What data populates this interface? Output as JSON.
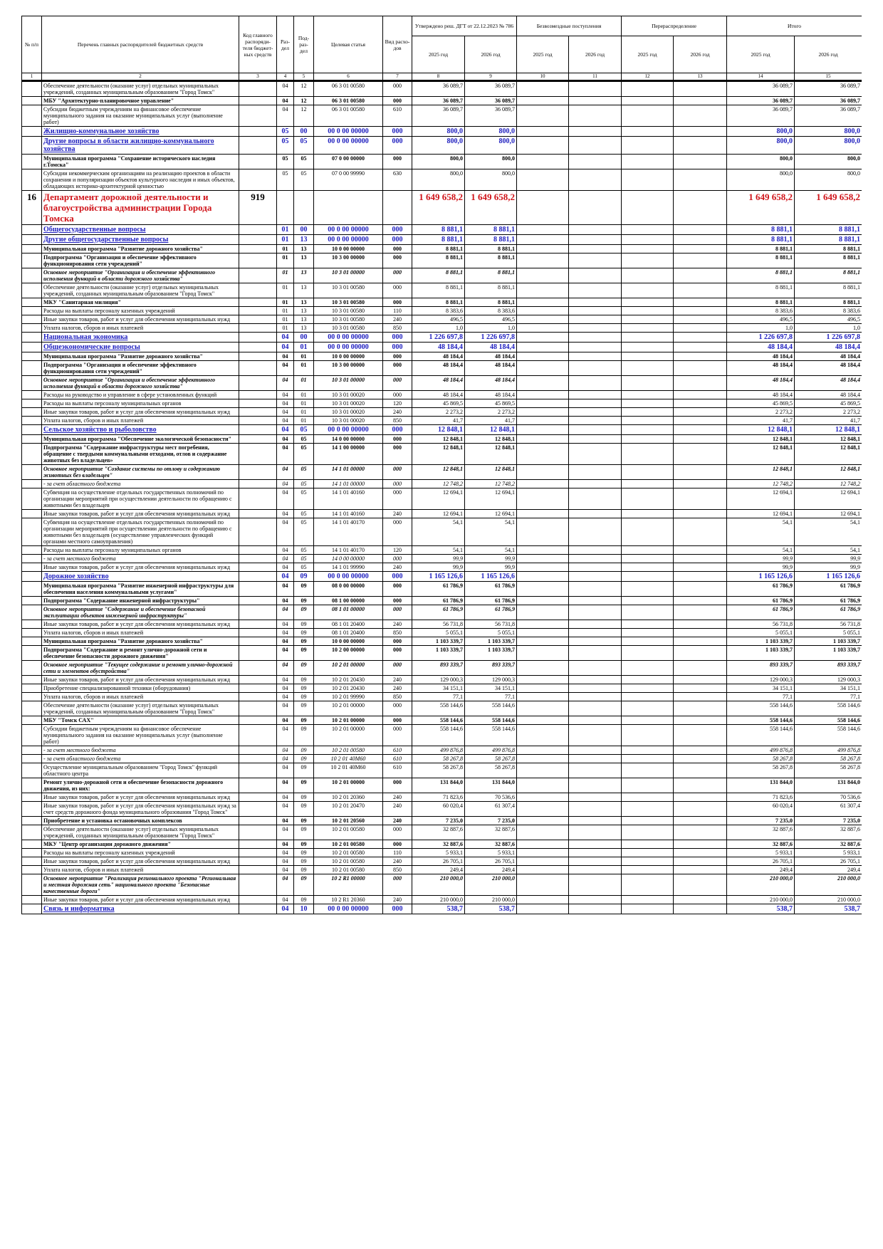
{
  "header": {
    "no": "№ п/п",
    "name": "Перечень главных распорядителей бюджетных средств",
    "code": "Код главного распоряди-теля бюджет-ных средств",
    "rz": "Раз-дел",
    "prz": "Под-раз-дел",
    "cs": "Целевая статья",
    "vr": "Вид расхо-дов",
    "approved": "Утверждено реш. ДГТ от 22.12.2023 № 786",
    "grants": "Безвозмездные поступления",
    "redistribution": "Перераспределение",
    "total": "Итого",
    "years": [
      "2025 год",
      "2026 год"
    ],
    "column_numbers": [
      1,
      2,
      3,
      4,
      5,
      6,
      7,
      8,
      9,
      10,
      11,
      12,
      13,
      14,
      15
    ]
  },
  "table": {
    "rows": [
      [
        null,
        "Обеспечение деятельности (оказание услуг) отдельных муниципальных учреждений, созданных муниципальным образованием \"Город Томск\"",
        null,
        "04",
        "12",
        "06 3 01 00580",
        "000",
        "36 089,7",
        "36 089,7",
        "36 089,7",
        "36 089,7"
      ],
      [
        null,
        "МБУ \"Архитектурно-планировочное управление\"",
        null,
        "04",
        "12",
        "06 3 01 00580",
        "000",
        "36 089,7",
        "36 089,7",
        "36 089,7",
        "36 089,7"
      ],
      [
        null,
        "Субсидии бюджетным учреждениям на финансовое обеспечение муниципального задания на оказание муниципальных услуг (выполнение работ)",
        null,
        "04",
        "12",
        "06 3 01 00580",
        "610",
        "36 089,7",
        "36 089,7",
        "36 089,7",
        "36 089,7"
      ],
      [
        null,
        "Жилищно-коммунальное хозяйство",
        null,
        "05",
        "00",
        "00 0 00 00000",
        "000",
        "800,0",
        "800,0",
        "800,0",
        "800,0"
      ],
      [
        null,
        "Другие вопросы в области жилищно-коммунального хозяйства",
        null,
        "05",
        "05",
        "00 0 00 00000",
        "000",
        "800,0",
        "800,0",
        "800,0",
        "800,0"
      ],
      [
        null,
        "Муниципальная программа \"Сохранение исторического наследия г.Томска\"",
        null,
        "05",
        "05",
        "07 0 00 00000",
        "000",
        "800,0",
        "800,0",
        "800,0",
        "800,0"
      ],
      [
        null,
        "Субсидии некоммерческим организациям на реализацию проектов в области сохранения и популяризации объектов культурного наследия и иных объектов, обладающих историко-архитектурной ценностью",
        null,
        "05",
        "05",
        "07 0 00 99990",
        "630",
        "800,0",
        "800,0",
        "800,0",
        "800,0"
      ],
      [
        "16",
        "Департамент дорожной деятельности и благоустройства администрации Города Томска",
        "919",
        null,
        null,
        null,
        null,
        "1 649 658,2",
        "1 649 658,2",
        "1 649 658,2",
        "1 649 658,2"
      ],
      [
        null,
        "Общегосударственные вопросы",
        null,
        "01",
        "00",
        "00 0 00 00000",
        "000",
        "8 881,1",
        "8 881,1",
        "8 881,1",
        "8 881,1"
      ],
      [
        null,
        "Другие общегосударственные вопросы",
        null,
        "01",
        "13",
        "00 0 00 00000",
        "000",
        "8 881,1",
        "8 881,1",
        "8 881,1",
        "8 881,1"
      ],
      [
        null,
        "Муниципальная программа \"Развитие дорожного хозяйства\"",
        null,
        "01",
        "13",
        "10 0 00 00000",
        "000",
        "8 881,1",
        "8 881,1",
        "8 881,1",
        "8 881,1"
      ],
      [
        null,
        "Подпрограмма \"Организация и обеспечение эффективного функционирования сети учреждений\"",
        null,
        "01",
        "13",
        "10 3 00 00000",
        "000",
        "8 881,1",
        "8 881,1",
        "8 881,1",
        "8 881,1"
      ],
      [
        null,
        "Основное мероприятие \"Организация и обеспечение эффективного исполнения функций в области дорожного хозяйства\"",
        null,
        "01",
        "13",
        "10 3 01 00000",
        "000",
        "8 881,1",
        "8 881,1",
        "8 881,1",
        "8 881,1"
      ],
      [
        null,
        "Обеспечение деятельности (оказание услуг) отдельных муниципальных учреждений, созданных муниципальным образованием \"Город Томск\"",
        null,
        "01",
        "13",
        "10 3 01 00580",
        "000",
        "8 881,1",
        "8 881,1",
        "8 881,1",
        "8 881,1"
      ],
      [
        null,
        "МКУ \"Санитарная милиция\"",
        null,
        "01",
        "13",
        "10 3 01 00580",
        "000",
        "8 881,1",
        "8 881,1",
        "8 881,1",
        "8 881,1"
      ],
      [
        null,
        "Расходы на выплаты персоналу казенных учреждений",
        null,
        "01",
        "13",
        "10 3 01 00580",
        "110",
        "8 383,6",
        "8 383,6",
        "8 383,6",
        "8 383,6"
      ],
      [
        null,
        "Иные закупки товаров, работ и услуг для обеспечения муниципальных нужд",
        null,
        "01",
        "13",
        "10 3 01 00580",
        "240",
        "496,5",
        "496,5",
        "496,5",
        "496,5"
      ],
      [
        null,
        "Уплата налогов, сборов и иных платежей",
        null,
        "01",
        "13",
        "10 3 01 00580",
        "850",
        "1,0",
        "1,0",
        "1,0",
        "1,0"
      ],
      [
        null,
        "Национальная экономика",
        null,
        "04",
        "00",
        "00 0 00 00000",
        "000",
        "1 226 697,8",
        "1 226 697,8",
        "1 226 697,8",
        "1 226 697,8"
      ],
      [
        null,
        "Общеэкономические вопросы",
        null,
        "04",
        "01",
        "00 0 00 00000",
        "000",
        "48 184,4",
        "48 184,4",
        "48 184,4",
        "48 184,4"
      ],
      [
        null,
        "Муниципальная программа \"Развитие дорожного хозяйства\"",
        null,
        "04",
        "01",
        "10 0 00 00000",
        "000",
        "48 184,4",
        "48 184,4",
        "48 184,4",
        "48 184,4"
      ],
      [
        null,
        "Подпрограмма \"Организация и обеспечение эффективного функционирования сети учреждений\"",
        null,
        "04",
        "01",
        "10 3 00 00000",
        "000",
        "48 184,4",
        "48 184,4",
        "48 184,4",
        "48 184,4"
      ],
      [
        null,
        "Основное мероприятие \"Организация и обеспечение эффективного исполнения функций в области дорожного хозяйства\"",
        null,
        "04",
        "01",
        "10 3 01 00000",
        "000",
        "48 184,4",
        "48 184,4",
        "48 184,4",
        "48 184,4"
      ],
      [
        null,
        "Расходы на руководство и управление в сфере установленных функций",
        null,
        "04",
        "01",
        "10 3 01 00020",
        "000",
        "48 184,4",
        "48 184,4",
        "48 184,4",
        "48 184,4"
      ],
      [
        null,
        "Расходы на выплаты персоналу муниципальных органов",
        null,
        "04",
        "01",
        "10 3 01 00020",
        "120",
        "45 869,5",
        "45 869,5",
        "45 869,5",
        "45 869,5"
      ],
      [
        null,
        "Иные закупки товаров, работ и услуг для обеспечения муниципальных нужд",
        null,
        "04",
        "01",
        "10 3 01 00020",
        "240",
        "2 273,2",
        "2 273,2",
        "2 273,2",
        "2 273,2"
      ],
      [
        null,
        "Уплата налогов, сборов и иных платежей",
        null,
        "04",
        "01",
        "10 3 01 00020",
        "850",
        "41,7",
        "41,7",
        "41,7",
        "41,7"
      ],
      [
        null,
        "Сельское хозяйство и рыболовство",
        null,
        "04",
        "05",
        "00 0 00 00000",
        "000",
        "12 848,1",
        "12 848,1",
        "12 848,1",
        "12 848,1"
      ],
      [
        null,
        "Муниципальная программа \"Обеспечение экологической безопасности\"",
        null,
        "04",
        "05",
        "14 0 00 00000",
        "000",
        "12 848,1",
        "12 848,1",
        "12 848,1",
        "12 848,1"
      ],
      [
        null,
        "Подпрограмма \"Содержание инфраструктуры мест погребения, обращение с твердыми коммунальными отходами, отлов и содержание животных без владельцев»",
        null,
        "04",
        "05",
        "14 1 00 00000",
        "000",
        "12 848,1",
        "12 848,1",
        "12 848,1",
        "12 848,1"
      ],
      [
        null,
        "Основное мероприятие \"Создание системы по отлову и содержанию животных без владельцев\"",
        null,
        "04",
        "05",
        "14 1 01 00000",
        "000",
        "12 848,1",
        "12 848,1",
        "12 848,1",
        "12 848,1"
      ],
      [
        null,
        "- за счет областного бюджета",
        null,
        "04",
        "05",
        "14 1 01 00000",
        "000",
        "12 748,2",
        "12 748,2",
        "12 748,2",
        "12 748,2"
      ],
      [
        null,
        "Субвенция на осуществление отдельных государственных полномочий по организации мероприятий при осуществлении деятельности по обращению с животными без владельцев",
        null,
        "04",
        "05",
        "14 1 01 40160",
        "000",
        "12 694,1",
        "12 694,1",
        "12 694,1",
        "12 694,1"
      ],
      [
        null,
        "Иные закупки товаров, работ и услуг для обеспечения муниципальных нужд",
        null,
        "04",
        "05",
        "14 1 01 40160",
        "240",
        "12 694,1",
        "12 694,1",
        "12 694,1",
        "12 694,1"
      ],
      [
        null,
        "Субвенция на осуществление отдельных государственных полномочий по организации мероприятий при осуществлении деятельности по обращению с животными без владельцев (осуществление управленческих функций органами местного самоуправления)",
        null,
        "04",
        "05",
        "14 1 01 40170",
        "000",
        "54,1",
        "54,1",
        "54,1",
        "54,1"
      ],
      [
        null,
        "Расходы на выплаты персоналу муниципальных органов",
        null,
        "04",
        "05",
        "14 1 01 40170",
        "120",
        "54,1",
        "54,1",
        "54,1",
        "54,1"
      ],
      [
        null,
        "- за счет местного бюджета",
        null,
        "04",
        "05",
        "14 0 00 00000",
        "000",
        "99,9",
        "99,9",
        "99,9",
        "99,9"
      ],
      [
        null,
        "Иные закупки товаров, работ и услуг для обеспечения муниципальных нужд",
        null,
        "04",
        "05",
        "14 1 01 99990",
        "240",
        "99,9",
        "99,9",
        "99,9",
        "99,9"
      ],
      [
        null,
        "Дорожное хозяйство",
        null,
        "04",
        "09",
        "00 0 00 00000",
        "000",
        "1 165 126,6",
        "1 165 126,6",
        "1 165 126,6",
        "1 165 126,6"
      ],
      [
        null,
        "Муниципальная программа \"Развитие инженерной инфраструктуры для обеспечения населения коммунальными услугами\"",
        null,
        "04",
        "09",
        "08 0 00 00000",
        "000",
        "61 786,9",
        "61 786,9",
        "61 786,9",
        "61 786,9"
      ],
      [
        null,
        "Подпрограмма \"Содержание инженерной инфраструктуры\"",
        null,
        "04",
        "09",
        "08 1 00 00000",
        "000",
        "61 786,9",
        "61 786,9",
        "61 786,9",
        "61 786,9"
      ],
      [
        null,
        "Основное мероприятие \"Содержание и обеспечение безопасной эксплуатации объектов инженерной инфраструктуры\"",
        null,
        "04",
        "09",
        "08 1 01 00000",
        "000",
        "61 786,9",
        "61 786,9",
        "61 786,9",
        "61 786,9"
      ],
      [
        null,
        "Иные закупки товаров, работ и услуг для обеспечения муниципальных нужд",
        null,
        "04",
        "09",
        "08 1 01 20400",
        "240",
        "56 731,8",
        "56 731,8",
        "56 731,8",
        "56 731,8"
      ],
      [
        null,
        "Уплата налогов, сборов и иных платежей",
        null,
        "04",
        "09",
        "08 1 01 20400",
        "850",
        "5 055,1",
        "5 055,1",
        "5 055,1",
        "5 055,1"
      ],
      [
        null,
        "Муниципальная программа \"Развитие дорожного хозяйства\"",
        null,
        "04",
        "09",
        "10 0 00 00000",
        "000",
        "1 103 339,7",
        "1 103 339,7",
        "1 103 339,7",
        "1 103 339,7"
      ],
      [
        null,
        "Подпрограмма \"Содержание и ремонт улично-дорожной сети и обеспечение безопасности дорожного движения\"",
        null,
        "04",
        "09",
        "10 2 00 00000",
        "000",
        "1 103 339,7",
        "1 103 339,7",
        "1 103 339,7",
        "1 103 339,7"
      ],
      [
        null,
        "Основное мероприятие \"Текущее содержание и ремонт улично-дорожной сети и элементов обустройства\"",
        null,
        "04",
        "09",
        "10 2 01 00000",
        "000",
        "893 339,7",
        "893 339,7",
        "893 339,7",
        "893 339,7"
      ],
      [
        null,
        "Иные закупки товаров, работ и услуг для обеспечения муниципальных нужд",
        null,
        "04",
        "09",
        "10 2 01 20430",
        "240",
        "129 000,3",
        "129 000,3",
        "129 000,3",
        "129 000,3"
      ],
      [
        null,
        "Приобретение специализированной техники (оборудования)",
        null,
        "04",
        "09",
        "10 2 01 20430",
        "240",
        "34 151,1",
        "34 151,1",
        "34 151,1",
        "34 151,1"
      ],
      [
        null,
        "Уплата налогов, сборов и иных платежей",
        null,
        "04",
        "09",
        "10 2 01 99990",
        "850",
        "77,1",
        "77,1",
        "77,1",
        "77,1"
      ],
      [
        null,
        "Обеспечение деятельности (оказание услуг) отдельных муниципальных учреждений, созданных муниципальным образованием \"Город Томск\"",
        null,
        "04",
        "09",
        "10 2 01 00000",
        "000",
        "558 144,6",
        "558 144,6",
        "558 144,6",
        "558 144,6"
      ],
      [
        null,
        "МБУ \"Томск САХ\"",
        null,
        "04",
        "09",
        "10 2 01 00000",
        "000",
        "558 144,6",
        "558 144,6",
        "558 144,6",
        "558 144,6"
      ],
      [
        null,
        "Субсидии бюджетным учреждениям на финансовое обеспечение муниципального задания на оказание муниципальных услуг (выполнение работ)",
        null,
        "04",
        "09",
        "10 2 01 00000",
        "000",
        "558 144,6",
        "558 144,6",
        "558 144,6",
        "558 144,6"
      ],
      [
        null,
        "- за счет местного бюджета",
        null,
        "04",
        "09",
        "10 2 01 00580",
        "610",
        "499 876,8",
        "499 876,8",
        "499 876,8",
        "499 876,8"
      ],
      [
        null,
        "- за счет областного бюджета",
        null,
        "04",
        "09",
        "10 2 01 40М60",
        "610",
        "58 267,8",
        "58 267,8",
        "58 267,8",
        "58 267,8"
      ],
      [
        null,
        "Осуществление муниципальным образованием \"Город Томск\" функций областного центра",
        null,
        "04",
        "09",
        "10 2 01 40М60",
        "610",
        "58 267,8",
        "58 267,8",
        "58 267,8",
        "58 267,8"
      ],
      [
        null,
        "Ремонт улично-дорожной сети и обеспечение безопасности дорожного движения, из них:",
        null,
        "04",
        "09",
        "10 2 01 00000",
        "000",
        "131 844,0",
        "131 844,0",
        "131 844,0",
        "131 844,0"
      ],
      [
        null,
        "Иные закупки товаров, работ и услуг для обеспечения муниципальных нужд",
        null,
        "04",
        "09",
        "10 2 01 20360",
        "240",
        "71 823,6",
        "70 536,6",
        "71 823,6",
        "70 536,6"
      ],
      [
        null,
        "Иные закупки товаров, работ и услуг для обеспечения муниципальных нужд за счет средств дорожного фонда муниципального образования \"Город Томск\"",
        null,
        "04",
        "09",
        "10 2 01 20470",
        "240",
        "60 020,4",
        "61 307,4",
        "60 020,4",
        "61 307,4"
      ],
      [
        null,
        "Приобретение и установка остановочных комплексов",
        null,
        "04",
        "09",
        "10 2 01 20560",
        "240",
        "7 235,0",
        "7 235,0",
        "7 235,0",
        "7 235,0"
      ],
      [
        null,
        "Обеспечение деятельности (оказание услуг) отдельных муниципальных учреждений, созданных муниципальным образованием \"Город Томск\"",
        null,
        "04",
        "09",
        "10 2 01 00580",
        "000",
        "32 887,6",
        "32 887,6",
        "32 887,6",
        "32 887,6"
      ],
      [
        null,
        "МКУ \"Центр организации дорожного движения\"",
        null,
        "04",
        "09",
        "10 2 01 00580",
        "000",
        "32 887,6",
        "32 887,6",
        "32 887,6",
        "32 887,6"
      ],
      [
        null,
        "Расходы на выплаты персоналу казенных учреждений",
        null,
        "04",
        "09",
        "10 2 01 00580",
        "110",
        "5 933,1",
        "5 933,1",
        "5 933,1",
        "5 933,1"
      ],
      [
        null,
        "Иные закупки товаров, работ и услуг для обеспечения муниципальных нужд",
        null,
        "04",
        "09",
        "10 2 01 00580",
        "240",
        "26 705,1",
        "26 705,1",
        "26 705,1",
        "26 705,1"
      ],
      [
        null,
        "Уплата налогов, сборов и иных платежей",
        null,
        "04",
        "09",
        "10 2 01 00580",
        "850",
        "249,4",
        "249,4",
        "249,4",
        "249,4"
      ],
      [
        null,
        "Основное мероприятие \"Реализация регионального проекта \"Региональная и местная дорожная сеть\" национального проекта \"Безопасные качественные дороги\"",
        null,
        "04",
        "09",
        "10 2 R1 00000",
        "000",
        "210 000,0",
        "210 000,0",
        "210 000,0",
        "210 000,0"
      ],
      [
        null,
        "Иные закупки товаров, работ и услуг для обеспечения муниципальных нужд",
        null,
        "04",
        "09",
        "10 2 R1 20360",
        "240",
        "210 000,0",
        "210 000,0",
        "210 000,0",
        "210 000,0"
      ],
      [
        null,
        "Связь и информатика",
        null,
        "04",
        "10",
        "00 0 00 00000",
        "000",
        "538,7",
        "538,7",
        "538,7",
        "538,7"
      ]
    ]
  }
}
